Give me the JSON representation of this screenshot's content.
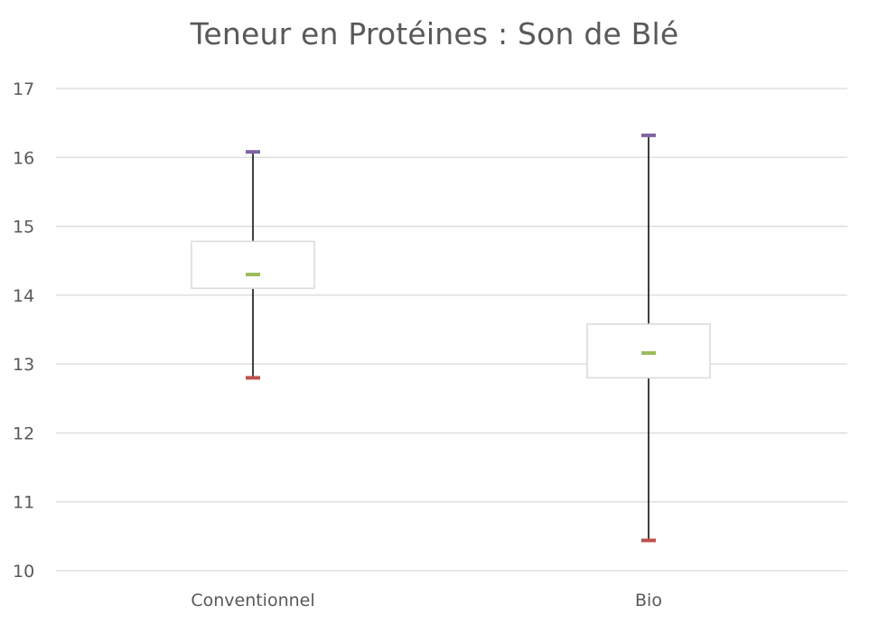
{
  "chart_data": {
    "type": "box",
    "title": "Teneur en Protéines : Son de Blé",
    "xlabel": "",
    "ylabel": "",
    "ylim": [
      10,
      17
    ],
    "yticks": [
      10,
      11,
      12,
      13,
      14,
      15,
      16,
      17
    ],
    "grid": true,
    "legend": "none",
    "categories": [
      "Conventionnel",
      "Bio"
    ],
    "boxes": [
      {
        "category": "Conventionnel",
        "min": 12.8,
        "q1": 14.1,
        "median": 14.3,
        "q3": 14.78,
        "max": 16.08
      },
      {
        "category": "Bio",
        "min": 10.44,
        "q1": 12.8,
        "median": 13.16,
        "q3": 13.58,
        "max": 16.32
      }
    ],
    "colors": {
      "min_marker": "#c0504d",
      "max_marker": "#8064a2",
      "median_marker": "#9bbb59",
      "box_outline": "#d9d9d9",
      "whisker": "#000000",
      "grid": "#d9d9d9",
      "text": "#595959"
    }
  }
}
